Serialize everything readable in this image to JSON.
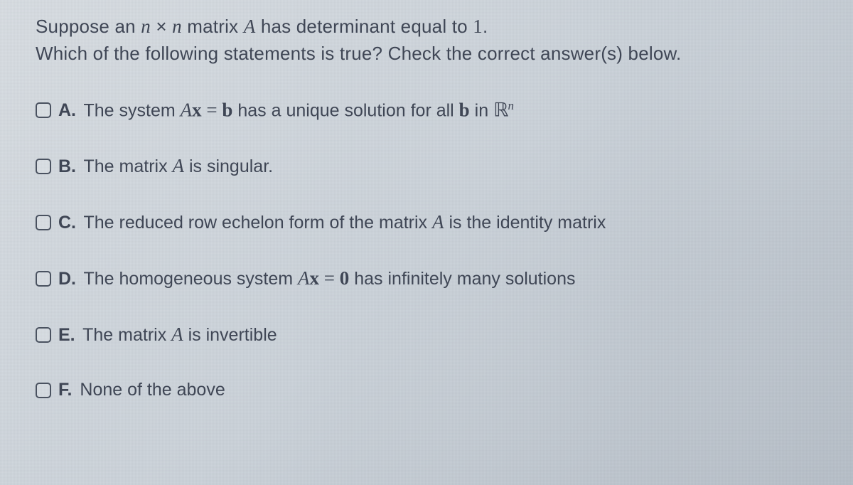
{
  "question": {
    "line1_pre": "Suppose an ",
    "line1_n1": "n",
    "line1_times": " × ",
    "line1_n2": "n",
    "line1_mid": " matrix ",
    "line1_A": "A",
    "line1_post": " has determinant equal to ",
    "line1_val": "1",
    "line1_end": ".",
    "line2": "Which of the following statements is true? Check the correct answer(s) below."
  },
  "options": {
    "A": {
      "letter": "A.",
      "pre": " The system ",
      "Ax": "A",
      "x": "x",
      "eq": " = ",
      "b": "b",
      "mid": " has a unique solution for all ",
      "b2": "b",
      "in": " in ",
      "R": "ℝ",
      "exp": "n"
    },
    "B": {
      "letter": "B.",
      "pre": " The matrix ",
      "A": "A",
      "post": " is singular."
    },
    "C": {
      "letter": "C.",
      "pre": " The reduced row echelon form of the matrix ",
      "A": "A",
      "post": " is the identity matrix"
    },
    "D": {
      "letter": "D.",
      "pre": " The homogeneous system ",
      "Ax": "A",
      "x": "x",
      "eq": " = ",
      "zero": "0",
      "post": " has infinitely many solutions"
    },
    "E": {
      "letter": "E.",
      "pre": " The matrix ",
      "A": "A",
      "post": " is invertible"
    },
    "F": {
      "letter": "F.",
      "text": " None of the above"
    }
  },
  "style": {
    "text_color": "#3f4655",
    "checkbox_border": "#4a5260",
    "font_size_prompt": 26,
    "font_size_option": 25,
    "option_gap": 48
  }
}
